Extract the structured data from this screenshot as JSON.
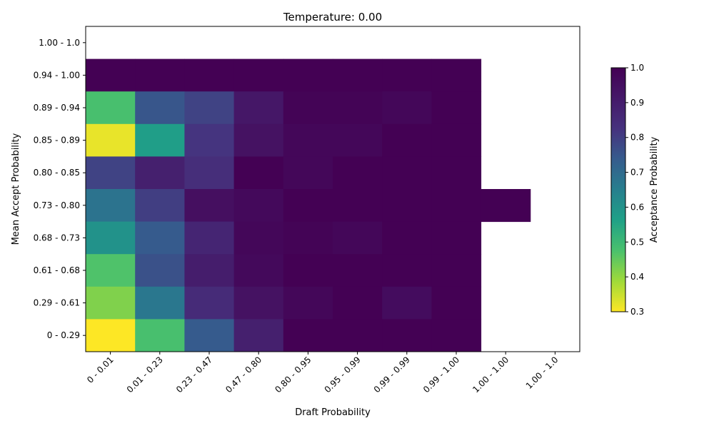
{
  "chart_data": {
    "type": "heatmap",
    "title": "Temperature: 0.00",
    "xlabel": "Draft Probability",
    "ylabel": "Mean Accept Probability",
    "x_categories": [
      "0 - 0.01",
      "0.01 - 0.23",
      "0.23 - 0.47",
      "0.47 - 0.80",
      "0.80 - 0.95",
      "0.95 - 0.99",
      "0.99 - 0.99",
      "0.99 - 1.00",
      "1.00 - 1.00",
      "1.00 - 1.0"
    ],
    "y_categories_top_to_bottom": [
      "1.00 - 1.0",
      "0.94 - 1.00",
      "0.89 - 0.94",
      "0.85 - 0.89",
      "0.80 - 0.85",
      "0.73 - 0.80",
      "0.68 - 0.73",
      "0.61 - 0.68",
      "0.29 - 0.61",
      "0 - 0.29"
    ],
    "values_top_to_bottom": [
      [
        null,
        null,
        null,
        null,
        null,
        null,
        null,
        null,
        null,
        null
      ],
      [
        1.0,
        1.0,
        1.0,
        1.0,
        1.0,
        1.0,
        1.0,
        1.0,
        null,
        null
      ],
      [
        0.48,
        0.75,
        0.79,
        0.92,
        0.99,
        0.99,
        0.98,
        1.0,
        null,
        null
      ],
      [
        0.32,
        0.57,
        0.82,
        0.94,
        0.98,
        0.98,
        1.0,
        1.0,
        null,
        null
      ],
      [
        0.79,
        0.89,
        0.84,
        1.0,
        0.98,
        1.0,
        1.0,
        1.0,
        null,
        null
      ],
      [
        0.68,
        0.8,
        0.95,
        0.97,
        1.0,
        1.0,
        1.0,
        1.0,
        1.0,
        null
      ],
      [
        0.6,
        0.74,
        0.87,
        0.98,
        0.99,
        0.98,
        1.0,
        1.0,
        null,
        null
      ],
      [
        0.47,
        0.76,
        0.9,
        0.97,
        1.0,
        1.0,
        1.0,
        1.0,
        null,
        null
      ],
      [
        0.42,
        0.67,
        0.85,
        0.94,
        0.98,
        1.0,
        0.96,
        1.0,
        null,
        null
      ],
      [
        0.29,
        0.48,
        0.74,
        0.89,
        1.0,
        1.0,
        1.0,
        1.0,
        null,
        null
      ]
    ],
    "colorbar": {
      "label": "Acceptance Probability",
      "min": 0.3,
      "max": 1.0,
      "ticks": [
        "0.3",
        "0.4",
        "0.5",
        "0.6",
        "0.7",
        "0.8",
        "0.9",
        "1.0"
      ],
      "colormap": "viridis (reversed)"
    }
  }
}
